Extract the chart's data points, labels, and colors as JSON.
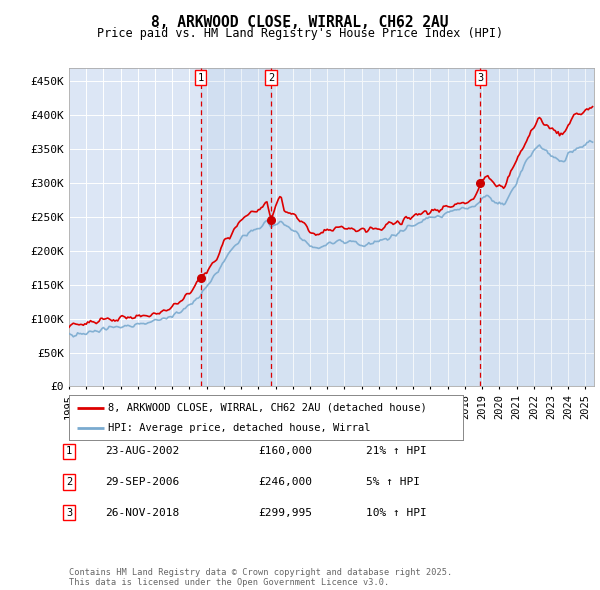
{
  "title": "8, ARKWOOD CLOSE, WIRRAL, CH62 2AU",
  "subtitle": "Price paid vs. HM Land Registry's House Price Index (HPI)",
  "background_color": "#ffffff",
  "plot_bg_color": "#dce6f5",
  "grid_color": "#ffffff",
  "ylim": [
    0,
    470000
  ],
  "yticks": [
    0,
    50000,
    100000,
    150000,
    200000,
    250000,
    300000,
    350000,
    400000,
    450000
  ],
  "ytick_labels": [
    "£0",
    "£50K",
    "£100K",
    "£150K",
    "£200K",
    "£250K",
    "£300K",
    "£350K",
    "£400K",
    "£450K"
  ],
  "xlim_start": 1995.0,
  "xlim_end": 2025.5,
  "xticks": [
    1995,
    1996,
    1997,
    1998,
    1999,
    2000,
    2001,
    2002,
    2003,
    2004,
    2005,
    2006,
    2007,
    2008,
    2009,
    2010,
    2011,
    2012,
    2013,
    2014,
    2015,
    2016,
    2017,
    2018,
    2019,
    2020,
    2021,
    2022,
    2023,
    2024,
    2025
  ],
  "sale_dates": [
    2002.647,
    2006.747,
    2018.9
  ],
  "sale_prices": [
    160000,
    246000,
    299995
  ],
  "sale_labels": [
    "1",
    "2",
    "3"
  ],
  "sale_line_color": "#dd0000",
  "property_line_color": "#dd0000",
  "hpi_line_color": "#7aaacf",
  "legend_property": "8, ARKWOOD CLOSE, WIRRAL, CH62 2AU (detached house)",
  "legend_hpi": "HPI: Average price, detached house, Wirral",
  "table_entries": [
    {
      "label": "1",
      "date": "23-AUG-2002",
      "price": "£160,000",
      "hpi": "21% ↑ HPI"
    },
    {
      "label": "2",
      "date": "29-SEP-2006",
      "price": "£246,000",
      "hpi": "5% ↑ HPI"
    },
    {
      "label": "3",
      "date": "26-NOV-2018",
      "price": "£299,995",
      "hpi": "10% ↑ HPI"
    }
  ],
  "footnote": "Contains HM Land Registry data © Crown copyright and database right 2025.\nThis data is licensed under the Open Government Licence v3.0."
}
